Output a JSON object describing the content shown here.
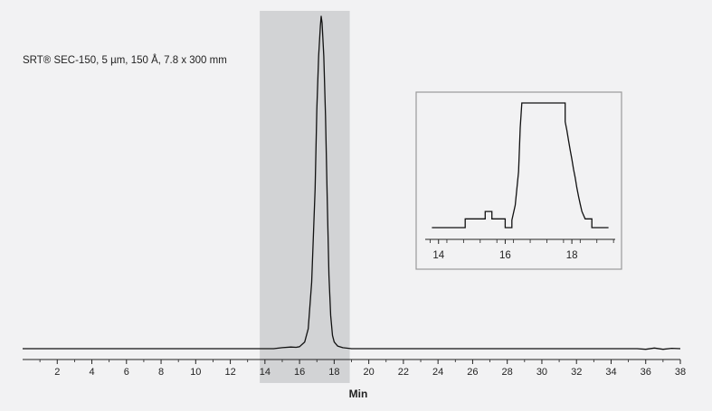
{
  "chart_data": [
    {
      "type": "line",
      "title": "SRT® SEC-150, 5 µm, 150 Å, 7.8 x 300 mm",
      "xlabel": "Min",
      "ylabel": "",
      "xlim": [
        0,
        38
      ],
      "ylim": [
        0,
        100
      ],
      "xticks": [
        2,
        4,
        6,
        8,
        10,
        12,
        14,
        16,
        18,
        20,
        22,
        24,
        26,
        28,
        30,
        32,
        34,
        36,
        38
      ],
      "highlight_range": [
        13.7,
        18.9
      ],
      "grid": false,
      "colors": {
        "trace": "#111111",
        "highlight": "#d2d3d5",
        "background": "#f2f2f3"
      },
      "series": [
        {
          "x": [
            0,
            14.5,
            15.0,
            15.5,
            15.8,
            16.0,
            16.3,
            16.5,
            16.7,
            16.9,
            17.0,
            17.1,
            17.2,
            17.25,
            17.3,
            17.4,
            17.5,
            17.6,
            17.7,
            17.8,
            17.9,
            18.0,
            18.2,
            18.5,
            19.0,
            35.5,
            36.0,
            36.5,
            37.0,
            37.5,
            38.0
          ],
          "y": [
            0,
            0,
            0.3,
            0.5,
            0.4,
            0.6,
            2,
            6,
            20,
            48,
            72,
            88,
            97,
            100,
            98,
            88,
            70,
            45,
            22,
            10,
            4,
            2,
            0.8,
            0.3,
            0,
            0,
            -0.2,
            0.2,
            -0.2,
            0.1,
            0
          ]
        }
      ]
    },
    {
      "type": "line",
      "title": "",
      "xlabel": "",
      "ylabel": "",
      "xlim": [
        13.6,
        19.3
      ],
      "ylim": [
        0,
        100
      ],
      "xticks": [
        14,
        16,
        18
      ],
      "series": [
        {
          "x": [
            13.8,
            14.8,
            14.8,
            15.4,
            15.4,
            15.6,
            15.6,
            16.0,
            16.0,
            16.2,
            16.2,
            16.3,
            16.4,
            16.45,
            16.5,
            16.5,
            17.8,
            17.8,
            17.85,
            17.9,
            17.95,
            18.0,
            18.05,
            18.1,
            18.15,
            18.2,
            18.25,
            18.3,
            18.35,
            18.4,
            18.4,
            18.6,
            18.6,
            19.1
          ],
          "y": [
            0,
            0,
            7,
            7,
            13,
            13,
            7,
            7,
            0,
            0,
            6,
            18,
            45,
            80,
            100,
            100,
            100,
            85,
            78,
            70,
            62,
            55,
            47,
            40,
            32,
            25,
            19,
            13,
            10,
            7,
            7,
            7,
            0,
            0
          ]
        }
      ]
    }
  ]
}
